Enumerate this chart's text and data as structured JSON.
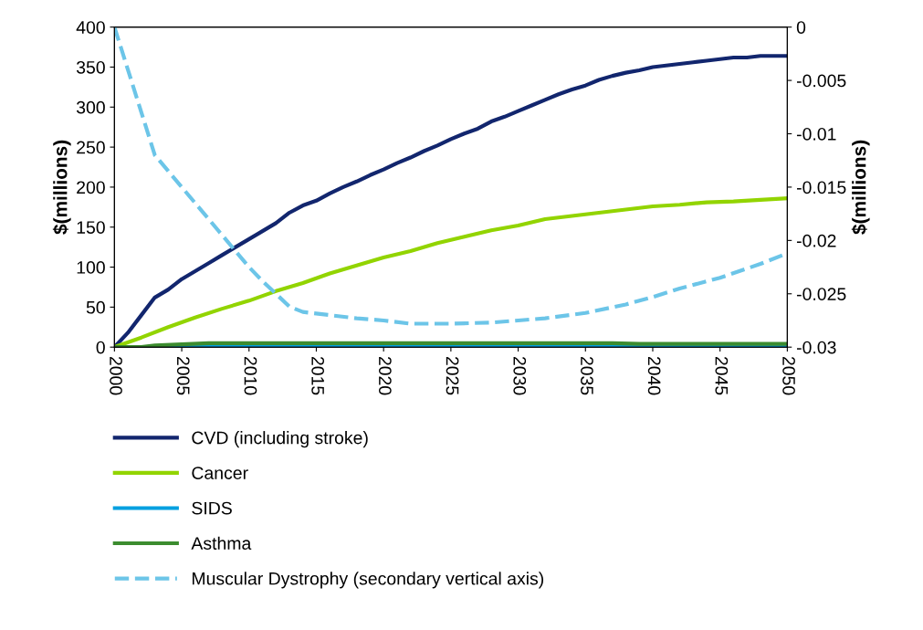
{
  "chart_data": {
    "type": "line",
    "ylabel": "$(millions)",
    "y2label": "$(millions)",
    "xlim": [
      2000,
      2050
    ],
    "xticks": [
      2000,
      2005,
      2010,
      2015,
      2020,
      2025,
      2030,
      2035,
      2040,
      2045,
      2050
    ],
    "ylim": [
      0,
      400
    ],
    "yticks": [
      0,
      50,
      100,
      150,
      200,
      250,
      300,
      350,
      400
    ],
    "y2lim": [
      -0.03,
      0
    ],
    "y2ticks": [
      -0.03,
      -0.025,
      -0.02,
      -0.015,
      -0.01,
      -0.005,
      0
    ],
    "grid": false,
    "legend": "bottom",
    "line_style": "solid",
    "marker": "none",
    "series": [
      {
        "name": "CVD (including stroke)",
        "color": "#12266e",
        "x": [
          2000,
          2001,
          2002,
          2003,
          2004,
          2005,
          2006,
          2007,
          2008,
          2009,
          2010,
          2011,
          2012,
          2013,
          2014,
          2015,
          2016,
          2017,
          2018,
          2019,
          2020,
          2021,
          2022,
          2023,
          2024,
          2025,
          2026,
          2027,
          2028,
          2029,
          2030,
          2031,
          2032,
          2033,
          2034,
          2035,
          2036,
          2037,
          2038,
          2039,
          2040,
          2041,
          2042,
          2043,
          2044,
          2045,
          2046,
          2047,
          2048,
          2049,
          2050
        ],
        "values": [
          0,
          18,
          40,
          62,
          72,
          85,
          95,
          105,
          115,
          125,
          135,
          145,
          155,
          168,
          177,
          183,
          192,
          200,
          207,
          215,
          222,
          230,
          237,
          245,
          252,
          260,
          267,
          273,
          282,
          288,
          295,
          302,
          309,
          316,
          322,
          327,
          334,
          339,
          343,
          346,
          350,
          352,
          354,
          356,
          358,
          360,
          362,
          362,
          364,
          364,
          364
        ]
      },
      {
        "name": "Cancer",
        "color": "#92d400",
        "x": [
          2000,
          2002,
          2004,
          2006,
          2008,
          2010,
          2012,
          2014,
          2016,
          2018,
          2020,
          2022,
          2024,
          2026,
          2028,
          2030,
          2032,
          2034,
          2036,
          2038,
          2040,
          2042,
          2044,
          2046,
          2048,
          2050
        ],
        "values": [
          0,
          12,
          25,
          37,
          48,
          58,
          70,
          80,
          92,
          102,
          112,
          120,
          130,
          138,
          146,
          152,
          160,
          164,
          168,
          172,
          176,
          178,
          181,
          182,
          184,
          186
        ]
      },
      {
        "name": "SIDS",
        "color": "#00a0e0",
        "x": [
          2000,
          2050
        ],
        "values": [
          0,
          0
        ]
      },
      {
        "name": "Asthma",
        "color": "#3c8c2f",
        "x": [
          2000,
          2002,
          2003,
          2007,
          2037,
          2039,
          2050
        ],
        "values": [
          0,
          0,
          2,
          5,
          5,
          4,
          4
        ]
      },
      {
        "name": "Muscular Dystrophy (secondary vertical axis)",
        "color": "#6cc5e8",
        "axis": "y2",
        "line_style": "dashed",
        "x": [
          2000,
          2001,
          2002,
          2003,
          2004,
          2005,
          2006,
          2007,
          2008,
          2009,
          2010,
          2011,
          2012,
          2013,
          2014,
          2016,
          2018,
          2020,
          2022,
          2025,
          2028,
          2030,
          2032,
          2035,
          2038,
          2040,
          2042,
          2045,
          2048,
          2050
        ],
        "values": [
          0,
          -0.004,
          -0.008,
          -0.012,
          -0.0135,
          -0.015,
          -0.0165,
          -0.018,
          -0.0195,
          -0.021,
          -0.0225,
          -0.0238,
          -0.025,
          -0.0262,
          -0.0267,
          -0.027,
          -0.0273,
          -0.0275,
          -0.0278,
          -0.0278,
          -0.0277,
          -0.0275,
          -0.0273,
          -0.0268,
          -0.026,
          -0.0253,
          -0.0245,
          -0.0235,
          -0.0222,
          -0.0212
        ]
      }
    ]
  }
}
